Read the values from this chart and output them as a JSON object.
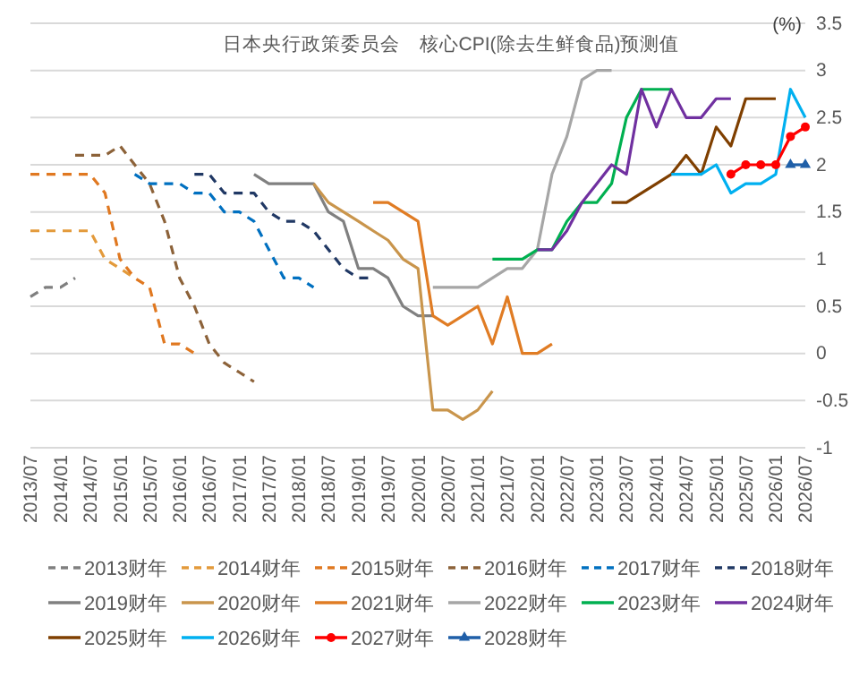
{
  "chart_data": {
    "type": "line",
    "title": "日本央行政策委员会　核心CPI(除去生鲜食品)预测值",
    "ylabel": "(%)",
    "xlim": [
      "2013-07",
      "2026-07"
    ],
    "xticks": [
      {
        "value": "2013-07",
        "label": "2013/07"
      },
      {
        "value": "2014-01",
        "label": "2014/01"
      },
      {
        "value": "2014-07",
        "label": "2014/07"
      },
      {
        "value": "2015-01",
        "label": "2015/01"
      },
      {
        "value": "2015-07",
        "label": "2015/07"
      },
      {
        "value": "2016-01",
        "label": "2016/01"
      },
      {
        "value": "2016-07",
        "label": "2016/07"
      },
      {
        "value": "2017-01",
        "label": "2017/01"
      },
      {
        "value": "2017-07",
        "label": "2017/07"
      },
      {
        "value": "2018-01",
        "label": "2018/01"
      },
      {
        "value": "2018-07",
        "label": "2018/07"
      },
      {
        "value": "2019-01",
        "label": "2019/01"
      },
      {
        "value": "2019-07",
        "label": "2019/07"
      },
      {
        "value": "2020-01",
        "label": "2020/01"
      },
      {
        "value": "2020-07",
        "label": "2020/07"
      },
      {
        "value": "2021-01",
        "label": "2021/01"
      },
      {
        "value": "2021-07",
        "label": "2021/07"
      },
      {
        "value": "2022-01",
        "label": "2022/01"
      },
      {
        "value": "2022-07",
        "label": "2022/07"
      },
      {
        "value": "2023-01",
        "label": "2023/01"
      },
      {
        "value": "2023-07",
        "label": "2023/07"
      },
      {
        "value": "2024-01",
        "label": "2024/01"
      },
      {
        "value": "2024-07",
        "label": "2024/07"
      },
      {
        "value": "2025-01",
        "label": "2025/01"
      },
      {
        "value": "2025-07",
        "label": "2025/07"
      },
      {
        "value": "2026-01",
        "label": "2026/01"
      },
      {
        "value": "2026-07",
        "label": "2026/07"
      }
    ],
    "ylim": [
      -1,
      3.5
    ],
    "yticks": [
      -1,
      -0.5,
      0,
      0.5,
      1,
      1.5,
      2,
      2.5,
      3,
      3.5
    ],
    "grid": "y",
    "legend": "bottom",
    "series": [
      {
        "name": "2013财年",
        "color": "#7f7f7f",
        "line_style": "dashed",
        "x": [
          "2013-07",
          "2013-10",
          "2014-01",
          "2014-04"
        ],
        "values": [
          0.6,
          0.7,
          0.7,
          0.8
        ]
      },
      {
        "name": "2014财年",
        "color": "#e39a3b",
        "line_style": "dashed",
        "x": [
          "2013-07",
          "2013-10",
          "2014-01",
          "2014-04",
          "2014-07",
          "2014-10",
          "2015-01",
          "2015-04"
        ],
        "values": [
          1.3,
          1.3,
          1.3,
          1.3,
          1.3,
          1.0,
          0.9,
          0.8
        ]
      },
      {
        "name": "2015财年",
        "color": "#e07820",
        "line_style": "dashed",
        "x": [
          "2013-07",
          "2013-10",
          "2014-01",
          "2014-04",
          "2014-07",
          "2014-10",
          "2015-01",
          "2015-04",
          "2015-07",
          "2015-10",
          "2016-01",
          "2016-04"
        ],
        "values": [
          1.9,
          1.9,
          1.9,
          1.9,
          1.9,
          1.7,
          1.0,
          0.8,
          0.7,
          0.1,
          0.1,
          0.0
        ]
      },
      {
        "name": "2016财年",
        "color": "#8c6239",
        "line_style": "dashed",
        "x": [
          "2014-04",
          "2014-07",
          "2014-10",
          "2015-01",
          "2015-04",
          "2015-07",
          "2015-10",
          "2016-01",
          "2016-04",
          "2016-07",
          "2016-10",
          "2017-01",
          "2017-04"
        ],
        "values": [
          2.1,
          2.1,
          2.1,
          2.2,
          2.0,
          1.8,
          1.4,
          0.8,
          0.5,
          0.1,
          -0.1,
          -0.2,
          -0.3
        ]
      },
      {
        "name": "2017财年",
        "color": "#0070c0",
        "line_style": "dashed",
        "x": [
          "2015-04",
          "2015-07",
          "2015-10",
          "2016-01",
          "2016-04",
          "2016-07",
          "2016-10",
          "2017-01",
          "2017-04",
          "2017-07",
          "2017-10",
          "2018-01",
          "2018-04"
        ],
        "values": [
          1.9,
          1.8,
          1.8,
          1.8,
          1.7,
          1.7,
          1.5,
          1.5,
          1.4,
          1.1,
          0.8,
          0.8,
          0.7
        ]
      },
      {
        "name": "2018财年",
        "color": "#203864",
        "line_style": "dashed",
        "x": [
          "2016-04",
          "2016-07",
          "2016-10",
          "2017-01",
          "2017-04",
          "2017-07",
          "2017-10",
          "2018-01",
          "2018-04",
          "2018-07",
          "2018-10",
          "2019-01",
          "2019-04"
        ],
        "values": [
          1.9,
          1.9,
          1.7,
          1.7,
          1.7,
          1.5,
          1.4,
          1.4,
          1.3,
          1.1,
          0.9,
          0.8,
          0.8
        ]
      },
      {
        "name": "2019财年",
        "color": "#808080",
        "line_style": "solid",
        "x": [
          "2017-04",
          "2017-07",
          "2017-10",
          "2018-01",
          "2018-04",
          "2018-07",
          "2018-10",
          "2019-01",
          "2019-04",
          "2019-07",
          "2019-10",
          "2020-01",
          "2020-04"
        ],
        "values": [
          1.9,
          1.8,
          1.8,
          1.8,
          1.8,
          1.5,
          1.4,
          0.9,
          0.9,
          0.8,
          0.5,
          0.4,
          0.4
        ]
      },
      {
        "name": "2020财年",
        "color": "#c9954c",
        "line_style": "solid",
        "x": [
          "2018-04",
          "2018-07",
          "2018-10",
          "2019-01",
          "2019-04",
          "2019-07",
          "2019-10",
          "2020-01",
          "2020-04",
          "2020-07",
          "2020-10",
          "2021-01",
          "2021-04"
        ],
        "values": [
          1.8,
          1.6,
          1.5,
          1.4,
          1.3,
          1.2,
          1.0,
          0.9,
          -0.6,
          -0.6,
          -0.7,
          -0.6,
          -0.4
        ]
      },
      {
        "name": "2021财年",
        "color": "#e07c24",
        "line_style": "solid",
        "x": [
          "2019-04",
          "2019-07",
          "2019-10",
          "2020-01",
          "2020-04",
          "2020-07",
          "2020-10",
          "2021-01",
          "2021-04",
          "2021-07",
          "2021-10",
          "2022-01",
          "2022-04"
        ],
        "values": [
          1.6,
          1.6,
          1.5,
          1.4,
          0.4,
          0.3,
          0.4,
          0.5,
          0.1,
          0.6,
          0.0,
          0.0,
          0.1
        ]
      },
      {
        "name": "2022财年",
        "color": "#a6a6a6",
        "line_style": "solid",
        "x": [
          "2020-04",
          "2020-07",
          "2020-10",
          "2021-01",
          "2021-04",
          "2021-07",
          "2021-10",
          "2022-01",
          "2022-04",
          "2022-07",
          "2022-10",
          "2023-01",
          "2023-04"
        ],
        "values": [
          0.7,
          0.7,
          0.7,
          0.7,
          0.8,
          0.9,
          0.9,
          1.1,
          1.9,
          2.3,
          2.9,
          3.0,
          3.0
        ]
      },
      {
        "name": "2023财年",
        "color": "#00b050",
        "line_style": "solid",
        "x": [
          "2021-04",
          "2021-07",
          "2021-10",
          "2022-01",
          "2022-04",
          "2022-07",
          "2022-10",
          "2023-01",
          "2023-04",
          "2023-07",
          "2023-10",
          "2024-01",
          "2024-04"
        ],
        "values": [
          1.0,
          1.0,
          1.0,
          1.1,
          1.1,
          1.4,
          1.6,
          1.6,
          1.8,
          2.5,
          2.8,
          2.8,
          2.8
        ]
      },
      {
        "name": "2024财年",
        "color": "#7030a0",
        "line_style": "solid",
        "x": [
          "2022-01",
          "2022-04",
          "2022-07",
          "2022-10",
          "2023-01",
          "2023-04",
          "2023-07",
          "2023-10",
          "2024-01",
          "2024-04",
          "2024-07",
          "2024-10",
          "2025-01",
          "2025-04"
        ],
        "values": [
          1.1,
          1.1,
          1.3,
          1.6,
          1.8,
          2.0,
          1.9,
          2.8,
          2.4,
          2.8,
          2.5,
          2.5,
          2.7,
          2.7
        ]
      },
      {
        "name": "2025财年",
        "color": "#7f3f00",
        "line_style": "solid",
        "x": [
          "2023-04",
          "2023-07",
          "2023-10",
          "2024-01",
          "2024-04",
          "2024-07",
          "2024-10",
          "2025-01",
          "2025-04",
          "2025-07",
          "2025-10",
          "2026-01"
        ],
        "values": [
          1.6,
          1.6,
          1.7,
          1.8,
          1.9,
          2.1,
          1.9,
          2.4,
          2.2,
          2.7,
          2.7,
          2.7
        ]
      },
      {
        "name": "2026财年",
        "color": "#00b0f0",
        "line_style": "solid",
        "x": [
          "2024-04",
          "2024-07",
          "2024-10",
          "2025-01",
          "2025-04",
          "2025-07",
          "2025-10",
          "2026-01",
          "2026-04",
          "2026-07"
        ],
        "values": [
          1.9,
          1.9,
          1.9,
          2.0,
          1.7,
          1.8,
          1.8,
          1.9,
          2.8,
          2.5
        ]
      },
      {
        "name": "2027财年",
        "color": "#ff0000",
        "line_style": "solid",
        "marker": "circle",
        "x": [
          "2025-04",
          "2025-07",
          "2025-10",
          "2026-01",
          "2026-04",
          "2026-07"
        ],
        "values": [
          1.9,
          2.0,
          2.0,
          2.0,
          2.3,
          2.4
        ]
      },
      {
        "name": "2028财年",
        "color": "#1f5fa8",
        "line_style": "solid",
        "marker": "triangle",
        "x": [
          "2026-04",
          "2026-07"
        ],
        "values": [
          2.0,
          2.0
        ]
      }
    ]
  }
}
